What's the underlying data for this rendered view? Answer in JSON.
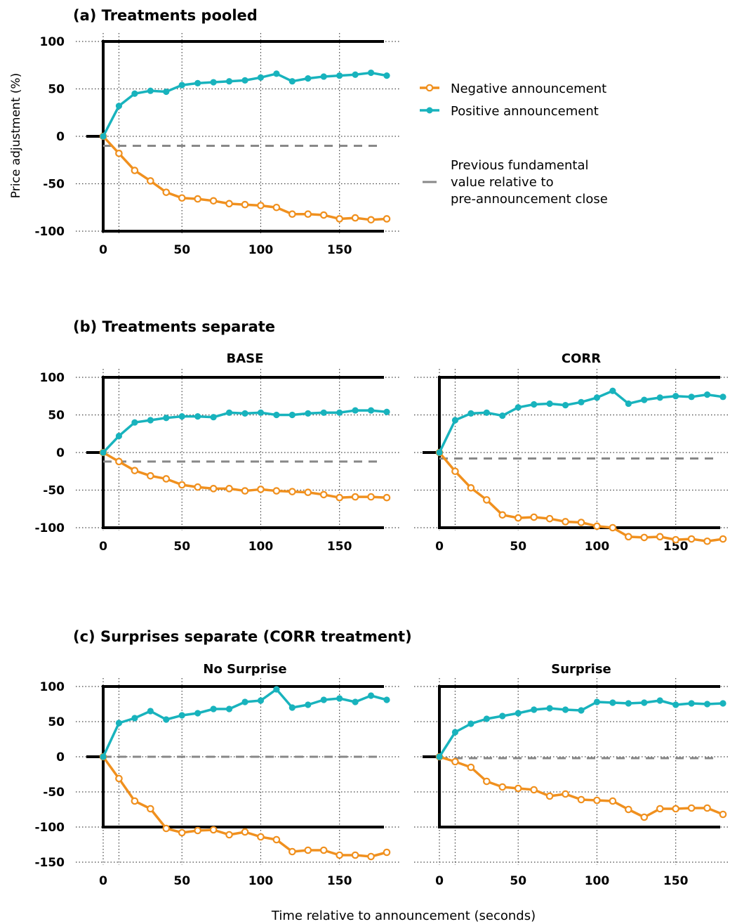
{
  "figure": {
    "ylabel": "Price adjustment (%)",
    "xlabel": "Time relative to announcement (seconds)",
    "sections": {
      "a": "(a) Treatments pooled",
      "b": "(b) Treatments separate",
      "c": "(c) Surprises separate (CORR treatment)"
    }
  },
  "legend": {
    "negative": "Negative announcement",
    "positive": "Positive announcement",
    "previous_lines": [
      "Previous fundamental",
      "value relative to",
      "pre-announcement close"
    ]
  },
  "colors": {
    "negative": "#f0901e",
    "positive": "#18b3bd",
    "previous": "#888888",
    "frame": "#000000",
    "grid": "#444444"
  },
  "chart_data": [
    {
      "id": "pooled",
      "type": "line",
      "title": "",
      "xlim": [
        0,
        180
      ],
      "ylim": [
        -100,
        100
      ],
      "xticks": [
        0,
        50,
        100,
        150
      ],
      "yticks": [
        -100,
        -50,
        0,
        50,
        100
      ],
      "x": [
        0,
        10,
        20,
        30,
        40,
        50,
        60,
        70,
        80,
        90,
        100,
        110,
        120,
        130,
        140,
        150,
        160,
        170,
        180
      ],
      "series": [
        {
          "name": "Negative announcement",
          "key": "negative",
          "marker": "open-circle",
          "values": [
            0,
            -18,
            -36,
            -47,
            -59,
            -65,
            -66,
            -68,
            -71,
            -72,
            -73,
            -75,
            -82,
            -82,
            -83,
            -87,
            -86,
            -88,
            -87
          ]
        },
        {
          "name": "Positive announcement",
          "key": "positive",
          "marker": "filled-circle",
          "values": [
            0,
            32,
            45,
            48,
            47,
            54,
            56,
            57,
            58,
            59,
            62,
            66,
            58,
            61,
            63,
            64,
            65,
            67,
            64
          ]
        }
      ],
      "previous_fundamental": -10,
      "grid": true
    },
    {
      "id": "base",
      "type": "line",
      "title": "BASE",
      "xlim": [
        0,
        180
      ],
      "ylim": [
        -100,
        100
      ],
      "xticks": [
        0,
        50,
        100,
        150
      ],
      "yticks": [
        -100,
        -50,
        0,
        50,
        100
      ],
      "x": [
        0,
        10,
        20,
        30,
        40,
        50,
        60,
        70,
        80,
        90,
        100,
        110,
        120,
        130,
        140,
        150,
        160,
        170,
        180
      ],
      "series": [
        {
          "name": "Negative announcement",
          "key": "negative",
          "marker": "open-circle",
          "values": [
            0,
            -12,
            -24,
            -31,
            -35,
            -43,
            -46,
            -48,
            -48,
            -51,
            -49,
            -51,
            -52,
            -53,
            -56,
            -60,
            -59,
            -59,
            -60
          ]
        },
        {
          "name": "Positive announcement",
          "key": "positive",
          "marker": "filled-circle",
          "values": [
            0,
            22,
            40,
            43,
            46,
            48,
            48,
            47,
            53,
            52,
            53,
            50,
            50,
            52,
            53,
            53,
            56,
            56,
            54
          ]
        }
      ],
      "previous_fundamental": -12,
      "grid": true
    },
    {
      "id": "corr",
      "type": "line",
      "title": "CORR",
      "xlim": [
        0,
        180
      ],
      "ylim": [
        -100,
        100
      ],
      "xticks": [
        0,
        50,
        100,
        150
      ],
      "yticks": [
        -100,
        -50,
        0,
        50,
        100
      ],
      "x": [
        0,
        10,
        20,
        30,
        40,
        50,
        60,
        70,
        80,
        90,
        100,
        110,
        120,
        130,
        140,
        150,
        160,
        170,
        180
      ],
      "series": [
        {
          "name": "Negative announcement",
          "key": "negative",
          "marker": "open-circle",
          "values": [
            0,
            -25,
            -47,
            -63,
            -83,
            -87,
            -86,
            -88,
            -92,
            -93,
            -98,
            -100,
            -112,
            -113,
            -112,
            -116,
            -115,
            -118,
            -115
          ]
        },
        {
          "name": "Positive announcement",
          "key": "positive",
          "marker": "filled-circle",
          "values": [
            0,
            43,
            52,
            53,
            49,
            60,
            64,
            65,
            63,
            67,
            73,
            82,
            65,
            70,
            73,
            75,
            74,
            77,
            74
          ]
        }
      ],
      "previous_fundamental": -8,
      "grid": true
    },
    {
      "id": "nosurprise",
      "type": "line",
      "title": "No Surprise",
      "xlim": [
        0,
        180
      ],
      "ylim": [
        -150,
        100
      ],
      "xticks": [
        0,
        50,
        100,
        150
      ],
      "yticks": [
        -150,
        -100,
        -50,
        0,
        50,
        100
      ],
      "x": [
        0,
        10,
        20,
        30,
        40,
        50,
        60,
        70,
        80,
        90,
        100,
        110,
        120,
        130,
        140,
        150,
        160,
        170,
        180
      ],
      "series": [
        {
          "name": "Negative announcement",
          "key": "negative",
          "marker": "open-circle",
          "values": [
            0,
            -31,
            -63,
            -74,
            -102,
            -108,
            -105,
            -104,
            -111,
            -107,
            -114,
            -118,
            -135,
            -133,
            -133,
            -140,
            -140,
            -142,
            -136
          ]
        },
        {
          "name": "Positive announcement",
          "key": "positive",
          "marker": "filled-circle",
          "values": [
            0,
            48,
            55,
            65,
            53,
            59,
            62,
            68,
            68,
            78,
            80,
            96,
            70,
            74,
            81,
            83,
            78,
            87,
            81
          ]
        }
      ],
      "previous_fundamental": 0,
      "grid": true
    },
    {
      "id": "surprise",
      "type": "line",
      "title": "Surprise",
      "xlim": [
        0,
        180
      ],
      "ylim": [
        -150,
        100
      ],
      "xticks": [
        0,
        50,
        100,
        150
      ],
      "yticks": [
        -150,
        -100,
        -50,
        0,
        50,
        100
      ],
      "x": [
        0,
        10,
        20,
        30,
        40,
        50,
        60,
        70,
        80,
        90,
        100,
        110,
        120,
        130,
        140,
        150,
        160,
        170,
        180
      ],
      "series": [
        {
          "name": "Negative announcement",
          "key": "negative",
          "marker": "open-circle",
          "values": [
            0,
            -7,
            -15,
            -35,
            -43,
            -45,
            -47,
            -56,
            -53,
            -61,
            -62,
            -63,
            -75,
            -86,
            -74,
            -74,
            -73,
            -73,
            -82
          ]
        },
        {
          "name": "Positive announcement",
          "key": "positive",
          "marker": "filled-circle",
          "values": [
            0,
            35,
            47,
            54,
            58,
            62,
            67,
            69,
            67,
            66,
            78,
            77,
            76,
            77,
            80,
            74,
            76,
            75,
            76
          ]
        }
      ],
      "previous_fundamental": -2,
      "grid": true
    }
  ]
}
